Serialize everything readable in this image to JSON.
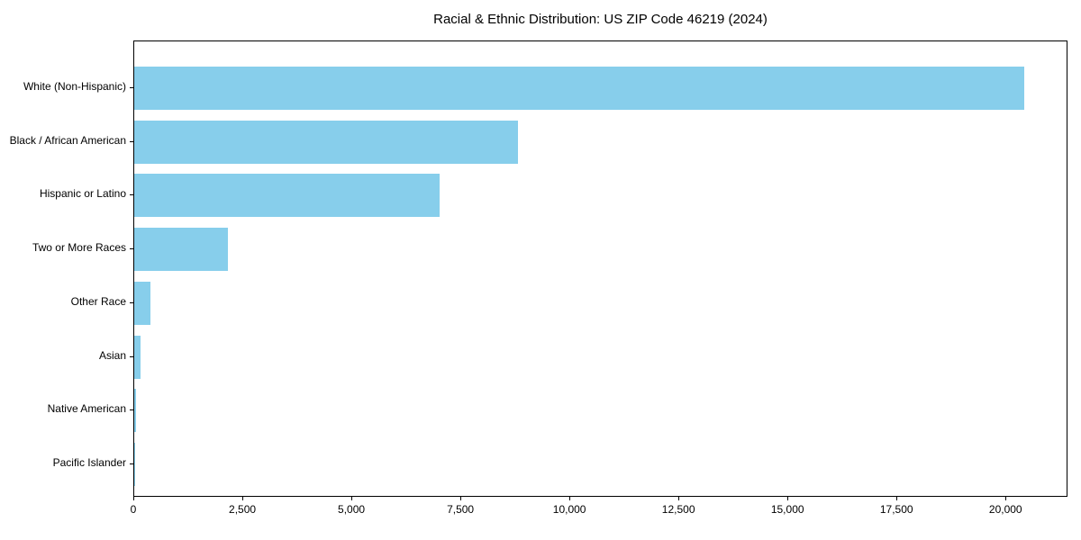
{
  "chart_data": {
    "type": "bar",
    "orientation": "horizontal",
    "title": "Racial & Ethnic Distribution: US ZIP Code 46219 (2024)",
    "categories": [
      "White (Non-Hispanic)",
      "Black / African American",
      "Hispanic or Latino",
      "Two or More Races",
      "Other Race",
      "Asian",
      "Native American",
      "Pacific Islander"
    ],
    "values": [
      20400,
      8800,
      7000,
      2150,
      370,
      145,
      40,
      12
    ],
    "xlabel": "",
    "ylabel": "",
    "xlim": [
      0,
      21420
    ],
    "xticks": [
      0,
      2500,
      5000,
      7500,
      10000,
      12500,
      15000,
      17500,
      20000
    ],
    "xtick_labels": [
      "0",
      "2,500",
      "5,000",
      "7,500",
      "10,000",
      "12,500",
      "15,000",
      "17,500",
      "20,000"
    ],
    "grid": false,
    "legend_position": "none",
    "bar_color": "#87CEEB",
    "background_color": "#FFFFFF",
    "axis_color": "#000000",
    "text_color": "#000000"
  }
}
